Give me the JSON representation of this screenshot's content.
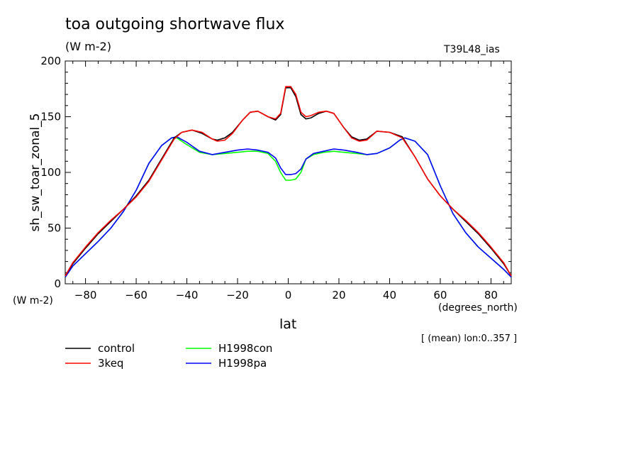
{
  "header": {
    "title": "toa outgoing shortwave flux",
    "units": "(W m-2)",
    "run_label": "T39L48_ias"
  },
  "axes": {
    "ylabel": "sh_sw_toar_zonal_5",
    "y_units": "(W m-2)",
    "xlabel": "lat",
    "x_units": "(degrees_north)",
    "note": "[ (mean) lon:0..357 ]"
  },
  "chart_data": {
    "type": "line",
    "title": "toa outgoing shortwave flux",
    "xlabel": "lat",
    "ylabel": "sh_sw_toar_zonal_5",
    "xlim": [
      -88,
      88
    ],
    "ylim": [
      0,
      200
    ],
    "xticks": [
      -80,
      -60,
      -40,
      -20,
      0,
      20,
      40,
      60,
      80
    ],
    "yticks": [
      0,
      50,
      100,
      150,
      200
    ],
    "grid": false,
    "legend": "bottom-left",
    "series": [
      {
        "name": "control",
        "color": "#000000",
        "x": [
          -88,
          -85,
          -80,
          -75,
          -70,
          -65,
          -60,
          -55,
          -50,
          -45,
          -42,
          -38,
          -34,
          -30,
          -28,
          -25,
          -22,
          -18,
          -15,
          -12,
          -8,
          -5,
          -3,
          -1,
          1,
          3,
          5,
          7,
          9,
          12,
          15,
          18,
          22,
          25,
          28,
          31,
          35,
          40,
          45,
          50,
          55,
          60,
          65,
          70,
          75,
          80,
          85,
          88
        ],
        "y": [
          7,
          18,
          32,
          45,
          56,
          67,
          79,
          93,
          112,
          131,
          136,
          138,
          135,
          130,
          129,
          131,
          136,
          147,
          154,
          155,
          150,
          147,
          152,
          176,
          176,
          168,
          152,
          148,
          149,
          153,
          155,
          153,
          140,
          132,
          129,
          130,
          137,
          136,
          132,
          114,
          94,
          79,
          67,
          56,
          45,
          32,
          18,
          7
        ]
      },
      {
        "name": "3keq",
        "color": "#ff0000",
        "x": [
          -88,
          -85,
          -80,
          -75,
          -70,
          -65,
          -60,
          -55,
          -50,
          -45,
          -42,
          -38,
          -34,
          -30,
          -28,
          -25,
          -22,
          -18,
          -15,
          -12,
          -8,
          -5,
          -3,
          -1,
          1,
          3,
          5,
          7,
          9,
          12,
          15,
          18,
          22,
          25,
          28,
          31,
          35,
          40,
          45,
          50,
          55,
          60,
          65,
          70,
          75,
          80,
          85,
          88
        ],
        "y": [
          7,
          19,
          33,
          46,
          57,
          67,
          78,
          92,
          111,
          130,
          136,
          138,
          136,
          130,
          128,
          129,
          135,
          147,
          154,
          155,
          150,
          148,
          153,
          177,
          177,
          170,
          154,
          150,
          151,
          154,
          155,
          153,
          140,
          131,
          128,
          129,
          137,
          136,
          131,
          114,
          94,
          79,
          67,
          57,
          46,
          33,
          19,
          7
        ]
      },
      {
        "name": "H1998con",
        "color": "#00ff00",
        "x": [
          -88,
          -85,
          -80,
          -75,
          -70,
          -65,
          -60,
          -55,
          -50,
          -46,
          -44,
          -40,
          -35,
          -30,
          -25,
          -20,
          -16,
          -12,
          -8,
          -5,
          -3,
          -1,
          1,
          3,
          5,
          7,
          10,
          14,
          18,
          22,
          27,
          31,
          35,
          40,
          44,
          46,
          50,
          55,
          60,
          65,
          70,
          75,
          80,
          85,
          88
        ],
        "y": [
          6,
          16,
          27,
          38,
          50,
          65,
          84,
          108,
          124,
          131,
          131,
          125,
          118,
          116,
          117,
          118,
          119,
          119,
          117,
          110,
          100,
          93,
          93,
          94,
          100,
          112,
          116,
          118,
          119,
          118,
          117,
          116,
          117,
          122,
          129,
          131,
          128,
          116,
          88,
          63,
          46,
          33,
          23,
          13,
          6
        ]
      },
      {
        "name": "H1998pa",
        "color": "#0000ff",
        "x": [
          -88,
          -85,
          -80,
          -75,
          -70,
          -65,
          -60,
          -55,
          -50,
          -46,
          -44,
          -40,
          -35,
          -30,
          -25,
          -20,
          -16,
          -12,
          -8,
          -5,
          -3,
          -1,
          1,
          3,
          5,
          7,
          10,
          14,
          18,
          22,
          27,
          31,
          35,
          40,
          44,
          46,
          50,
          55,
          60,
          65,
          70,
          75,
          80,
          85,
          88
        ],
        "y": [
          6,
          16,
          27,
          38,
          50,
          65,
          84,
          108,
          124,
          131,
          132,
          127,
          119,
          116,
          118,
          120,
          121,
          120,
          118,
          113,
          104,
          98,
          98,
          99,
          103,
          112,
          117,
          119,
          121,
          120,
          118,
          116,
          117,
          122,
          129,
          131,
          128,
          116,
          88,
          63,
          46,
          33,
          23,
          13,
          6
        ]
      }
    ]
  }
}
